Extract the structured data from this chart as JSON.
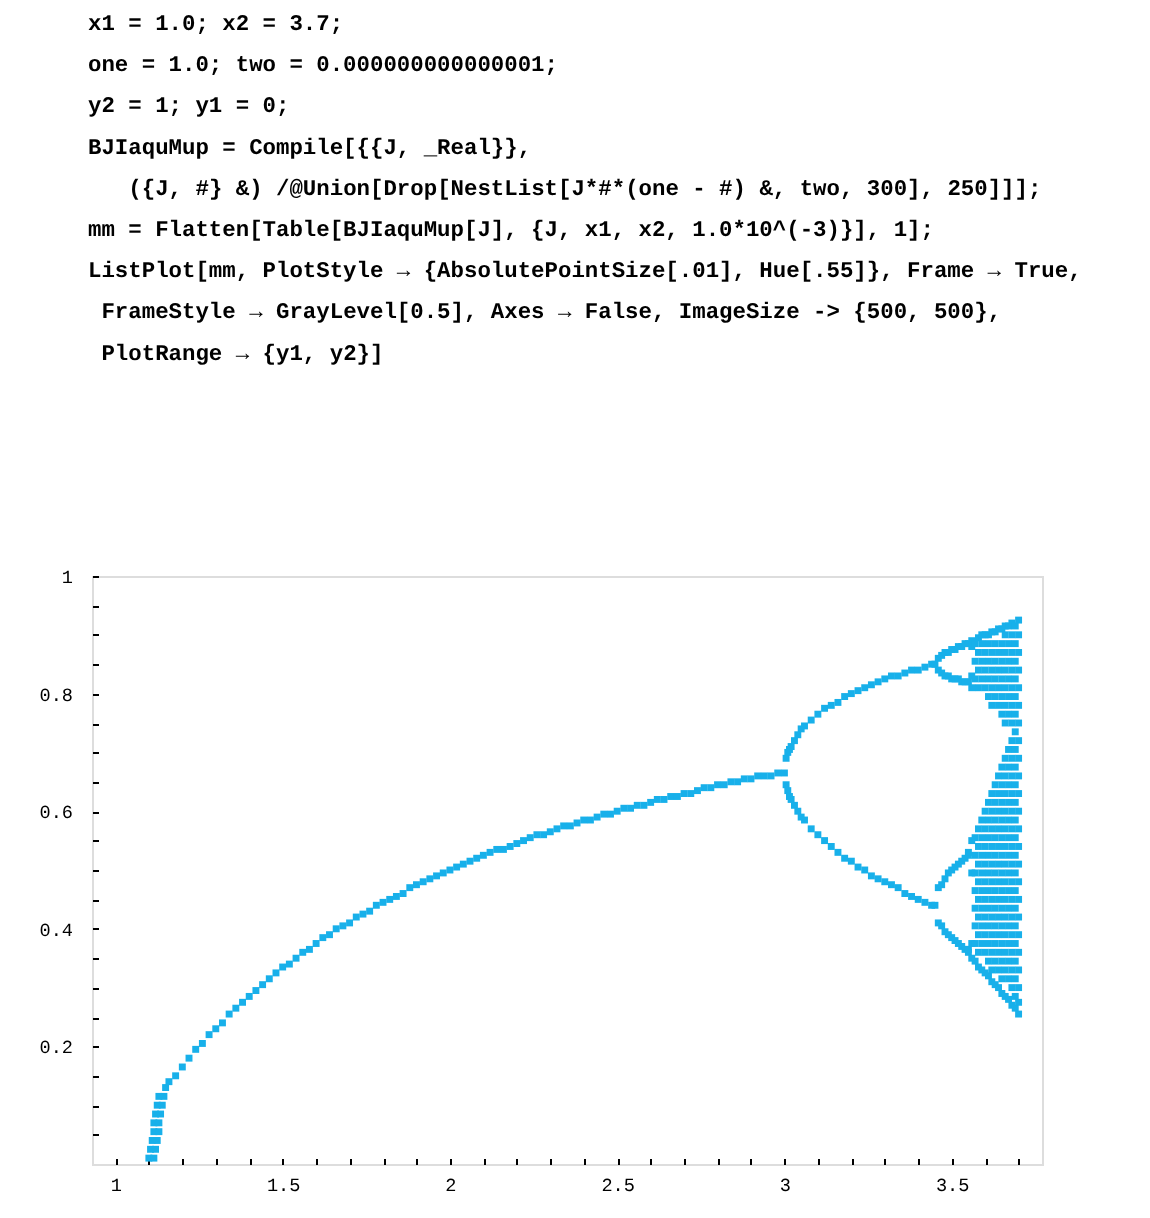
{
  "chart_data": {
    "type": "scatter",
    "marker": "square",
    "annotations": [
      "x1 = 1.0; x2 = 3.7;",
      "one = 1.0; two = 0.000000000000001;",
      "y2 = 1; y1 = 0;",
      "BJIaquMup = Compile[{{J, _Real}},",
      "   ({J, #} &) /@Union[Drop[NestList[J*#*(one - #) &, two, 300], 250]]];",
      "mm = Flatten[Table[BJIaquMup[J], {J, x1, x2, 1.0*10^(-3)}], 1];",
      "ListPlot[mm, PlotStyle → {AbsolutePointSize[.01], Hue[.55]}, Frame → True,",
      " FrameStyle → GrayLevel[0.5], Axes → False, ImageSize -> {500, 500},",
      " PlotRange → {y1, y2}]"
    ],
    "xlim": [
      0.93,
      3.77
    ],
    "ylim": [
      0,
      1
    ],
    "xticks": [
      1,
      {
        "value": 1.1,
        "label": null
      },
      {
        "value": 1.2,
        "label": null
      },
      {
        "value": 1.3,
        "label": null
      },
      {
        "value": 1.4,
        "label": null
      },
      1.5,
      {
        "value": 1.6,
        "label": null
      },
      {
        "value": 1.7,
        "label": null
      },
      {
        "value": 1.8,
        "label": null
      },
      {
        "value": 1.9,
        "label": null
      },
      2,
      {
        "value": 2.1,
        "label": null
      },
      {
        "value": 2.2,
        "label": null
      },
      {
        "value": 2.3,
        "label": null
      },
      {
        "value": 2.4,
        "label": null
      },
      2.5,
      {
        "value": 2.6,
        "label": null
      },
      {
        "value": 2.7,
        "label": null
      },
      {
        "value": 2.8,
        "label": null
      },
      {
        "value": 2.9,
        "label": null
      },
      3,
      {
        "value": 3.1,
        "label": null
      },
      {
        "value": 3.2,
        "label": null
      },
      {
        "value": 3.3,
        "label": null
      },
      {
        "value": 3.4,
        "label": null
      },
      3.5,
      {
        "value": 3.6,
        "label": null
      },
      {
        "value": 3.7,
        "label": null
      }
    ],
    "yticks": [
      {
        "value": 0.05,
        "label": null
      },
      {
        "value": 0.1,
        "label": null
      },
      {
        "value": 0.15,
        "label": null
      },
      0.2,
      {
        "value": 0.25,
        "label": null
      },
      {
        "value": 0.3,
        "label": null
      },
      {
        "value": 0.35,
        "label": null
      },
      0.4,
      {
        "value": 0.45,
        "label": null
      },
      {
        "value": 0.5,
        "label": null
      },
      {
        "value": 0.55,
        "label": null
      },
      0.6,
      {
        "value": 0.65,
        "label": null
      },
      {
        "value": 0.7,
        "label": null
      },
      {
        "value": 0.75,
        "label": null
      },
      0.8,
      {
        "value": 0.85,
        "label": null
      },
      {
        "value": 0.9,
        "label": null
      },
      {
        "value": 0.95,
        "label": null
      },
      1
    ],
    "series": [
      {
        "color": "#18b0ea",
        "x": [
          1.1,
          1.105,
          1.11,
          1.115,
          1.115,
          1.12,
          1.125,
          1.13,
          1.115,
          1.12,
          1.125,
          1.13,
          1.13,
          1.135,
          1.14,
          1.145,
          1.15,
          1.16,
          1.18,
          1.2,
          1.22,
          1.24,
          1.26,
          1.28,
          1.3,
          1.32,
          1.34,
          1.36,
          1.38,
          1.4,
          1.42,
          1.44,
          1.46,
          1.48,
          1.5,
          1.52,
          1.54,
          1.56,
          1.58,
          1.6,
          1.62,
          1.64,
          1.66,
          1.68,
          1.7,
          1.72,
          1.74,
          1.76,
          1.78,
          1.8,
          1.82,
          1.84,
          1.86,
          1.88,
          1.9,
          1.92,
          1.94,
          1.96,
          1.98,
          2,
          2.02,
          2.04,
          2.06,
          2.08,
          2.1,
          2.12,
          2.14,
          2.16,
          2.18,
          2.2,
          2.22,
          2.24,
          2.26,
          2.28,
          2.3,
          2.32,
          2.34,
          2.36,
          2.38,
          2.4,
          2.42,
          2.44,
          2.46,
          2.48,
          2.5,
          2.52,
          2.54,
          2.56,
          2.58,
          2.6,
          2.62,
          2.64,
          2.66,
          2.68,
          2.7,
          2.72,
          2.74,
          2.76,
          2.78,
          2.8,
          2.82,
          2.84,
          2.86,
          2.88,
          2.9,
          2.92,
          2.94,
          2.96,
          2.98,
          3
        ],
        "values": [
          0.01,
          0.025,
          0.04,
          0.055,
          0.07,
          0.085,
          0.1,
          0.115,
          0.01,
          0.025,
          0.04,
          0.055,
          0.07,
          0.085,
          0.1,
          0.115,
          0.13,
          0.14,
          0.15,
          0.165,
          0.18,
          0.195,
          0.205,
          0.22,
          0.23,
          0.24,
          0.255,
          0.265,
          0.275,
          0.285,
          0.295,
          0.305,
          0.315,
          0.325,
          0.335,
          0.34,
          0.35,
          0.36,
          0.365,
          0.375,
          0.385,
          0.39,
          0.4,
          0.405,
          0.41,
          0.42,
          0.425,
          0.43,
          0.44,
          0.445,
          0.45,
          0.455,
          0.46,
          0.47,
          0.475,
          0.48,
          0.485,
          0.49,
          0.495,
          0.5,
          0.505,
          0.51,
          0.515,
          0.52,
          0.525,
          0.53,
          0.535,
          0.535,
          0.54,
          0.545,
          0.55,
          0.555,
          0.56,
          0.56,
          0.565,
          0.57,
          0.575,
          0.575,
          0.58,
          0.585,
          0.585,
          0.59,
          0.595,
          0.595,
          0.6,
          0.605,
          0.605,
          0.61,
          0.61,
          0.615,
          0.62,
          0.62,
          0.625,
          0.625,
          0.63,
          0.63,
          0.635,
          0.64,
          0.64,
          0.645,
          0.645,
          0.65,
          0.65,
          0.655,
          0.655,
          0.66,
          0.66,
          0.66,
          0.665,
          0.665
        ]
      },
      {
        "color": "#18b0ea",
        "x": [
          3.005,
          3.005,
          3.01,
          3.01,
          3.015,
          3.015,
          3.02,
          3.02,
          3.03,
          3.03,
          3.04,
          3.04,
          3.05,
          3.05,
          3.06,
          3.06,
          3.08,
          3.08,
          3.1,
          3.1,
          3.12,
          3.12,
          3.14,
          3.14,
          3.16,
          3.16,
          3.18,
          3.18,
          3.2,
          3.2,
          3.22,
          3.22,
          3.24,
          3.24,
          3.26,
          3.26,
          3.28,
          3.28,
          3.3,
          3.3,
          3.32,
          3.32,
          3.34,
          3.34,
          3.36,
          3.36,
          3.38,
          3.38,
          3.4,
          3.4,
          3.42,
          3.42,
          3.44,
          3.44,
          3.45,
          3.45,
          3.46,
          3.46,
          3.46,
          3.46,
          3.47,
          3.47,
          3.47,
          3.47,
          3.48,
          3.48,
          3.48,
          3.48,
          3.49,
          3.49,
          3.49,
          3.49,
          3.5,
          3.5,
          3.5,
          3.5,
          3.51,
          3.51,
          3.51,
          3.51,
          3.52,
          3.52,
          3.52,
          3.52,
          3.53,
          3.53,
          3.53,
          3.53,
          3.54,
          3.54,
          3.54,
          3.54,
          3.55,
          3.55,
          3.55,
          3.55,
          3.55,
          3.55,
          3.56,
          3.56,
          3.56,
          3.56,
          3.56,
          3.56,
          3.56,
          3.56
        ],
        "values": [
          0.69,
          0.645,
          0.7,
          0.635,
          0.705,
          0.625,
          0.71,
          0.62,
          0.72,
          0.61,
          0.73,
          0.6,
          0.74,
          0.59,
          0.745,
          0.585,
          0.755,
          0.57,
          0.765,
          0.56,
          0.775,
          0.55,
          0.78,
          0.54,
          0.785,
          0.53,
          0.795,
          0.52,
          0.8,
          0.515,
          0.805,
          0.505,
          0.81,
          0.5,
          0.815,
          0.49,
          0.82,
          0.485,
          0.825,
          0.48,
          0.83,
          0.475,
          0.83,
          0.47,
          0.835,
          0.46,
          0.84,
          0.455,
          0.84,
          0.45,
          0.845,
          0.445,
          0.85,
          0.44,
          0.85,
          0.44,
          0.41,
          0.47,
          0.84,
          0.86,
          0.405,
          0.475,
          0.835,
          0.865,
          0.395,
          0.485,
          0.83,
          0.87,
          0.39,
          0.495,
          0.83,
          0.87,
          0.385,
          0.5,
          0.825,
          0.875,
          0.38,
          0.505,
          0.825,
          0.875,
          0.375,
          0.51,
          0.825,
          0.88,
          0.37,
          0.515,
          0.82,
          0.88,
          0.365,
          0.52,
          0.82,
          0.885,
          0.36,
          0.365,
          0.525,
          0.53,
          0.82,
          0.885,
          0.35,
          0.375,
          0.495,
          0.55,
          0.81,
          0.83,
          0.88,
          0.89
        ]
      },
      {
        "color": "#18b0ea",
        "x": [
          3.57,
          3.57,
          3.57,
          3.57,
          3.57,
          3.57,
          3.57,
          3.57,
          3.57,
          3.57,
          3.57,
          3.58,
          3.58,
          3.58,
          3.58,
          3.58,
          3.58,
          3.58,
          3.58,
          3.58,
          3.58,
          3.58,
          3.58,
          3.58,
          3.59,
          3.59,
          3.59,
          3.59,
          3.59,
          3.59,
          3.59,
          3.59,
          3.59,
          3.59,
          3.59,
          3.59,
          3.59,
          3.6,
          3.6,
          3.6,
          3.6,
          3.6,
          3.6,
          3.6,
          3.6,
          3.6,
          3.6,
          3.6,
          3.6,
          3.6,
          3.6,
          3.61,
          3.61,
          3.61,
          3.61,
          3.61,
          3.61,
          3.61,
          3.61,
          3.61,
          3.61,
          3.61,
          3.61,
          3.61,
          3.61,
          3.61,
          3.61,
          3.62,
          3.62,
          3.62,
          3.62,
          3.62,
          3.62,
          3.62,
          3.62,
          3.62,
          3.62,
          3.62,
          3.62,
          3.62,
          3.62,
          3.62,
          3.62,
          3.62,
          3.63,
          3.63,
          3.63,
          3.63,
          3.63,
          3.63,
          3.63,
          3.63,
          3.63,
          3.63,
          3.63,
          3.63,
          3.63,
          3.63,
          3.63,
          3.63,
          3.63,
          3.64,
          3.64,
          3.64,
          3.64,
          3.64,
          3.64,
          3.64,
          3.64,
          3.64,
          3.64,
          3.64,
          3.64,
          3.64,
          3.64,
          3.64,
          3.64,
          3.64,
          3.64
        ],
        "values": [
          0.345,
          0.375,
          0.405,
          0.435,
          0.465,
          0.495,
          0.525,
          0.555,
          0.825,
          0.855,
          0.885,
          0.335,
          0.36,
          0.39,
          0.42,
          0.45,
          0.48,
          0.51,
          0.54,
          0.57,
          0.81,
          0.84,
          0.87,
          0.895,
          0.33,
          0.375,
          0.405,
          0.435,
          0.465,
          0.495,
          0.525,
          0.555,
          0.585,
          0.825,
          0.855,
          0.885,
          0.9,
          0.325,
          0.36,
          0.39,
          0.42,
          0.45,
          0.48,
          0.51,
          0.54,
          0.57,
          0.6,
          0.81,
          0.84,
          0.87,
          0.9,
          0.32,
          0.345,
          0.375,
          0.405,
          0.435,
          0.465,
          0.495,
          0.525,
          0.555,
          0.585,
          0.615,
          0.795,
          0.825,
          0.855,
          0.885,
          0.9,
          0.31,
          0.33,
          0.36,
          0.39,
          0.42,
          0.45,
          0.48,
          0.51,
          0.54,
          0.57,
          0.6,
          0.63,
          0.78,
          0.81,
          0.84,
          0.87,
          0.905,
          0.305,
          0.345,
          0.375,
          0.405,
          0.435,
          0.465,
          0.495,
          0.525,
          0.555,
          0.585,
          0.615,
          0.645,
          0.795,
          0.825,
          0.855,
          0.885,
          0.905,
          0.3,
          0.33,
          0.36,
          0.39,
          0.42,
          0.45,
          0.48,
          0.51,
          0.54,
          0.57,
          0.6,
          0.63,
          0.66,
          0.78,
          0.81,
          0.84,
          0.87,
          0.91
        ]
      },
      {
        "color": "#18b0ea",
        "x": [
          3.65,
          3.65,
          3.65,
          3.65,
          3.65,
          3.65,
          3.65,
          3.65,
          3.65,
          3.65,
          3.65,
          3.65,
          3.65,
          3.65,
          3.65,
          3.65,
          3.65,
          3.65,
          3.65,
          3.65,
          3.66,
          3.66,
          3.66,
          3.66,
          3.66,
          3.66,
          3.66,
          3.66,
          3.66,
          3.66,
          3.66,
          3.66,
          3.66,
          3.66,
          3.66,
          3.66,
          3.66,
          3.66,
          3.66,
          3.66,
          3.66,
          3.67,
          3.67,
          3.67,
          3.67,
          3.67,
          3.67,
          3.67,
          3.67,
          3.67,
          3.67,
          3.67,
          3.67,
          3.67,
          3.67,
          3.67,
          3.67,
          3.67,
          3.67,
          3.67,
          3.67,
          3.67,
          3.68,
          3.68,
          3.68,
          3.68,
          3.68,
          3.68,
          3.68,
          3.68,
          3.68,
          3.68,
          3.68,
          3.68,
          3.68,
          3.68,
          3.68,
          3.68,
          3.68,
          3.68,
          3.68,
          3.68,
          3.68,
          3.68,
          3.68,
          3.69,
          3.69,
          3.69,
          3.69,
          3.69,
          3.69,
          3.69,
          3.69,
          3.69,
          3.69,
          3.69,
          3.69,
          3.69,
          3.69,
          3.69,
          3.69,
          3.69,
          3.69,
          3.69,
          3.69,
          3.69,
          3.69,
          3.69,
          3.7,
          3.7,
          3.7,
          3.7,
          3.7,
          3.7,
          3.7,
          3.7,
          3.7,
          3.7,
          3.7,
          3.7,
          3.7,
          3.7,
          3.7,
          3.7,
          3.7,
          3.7,
          3.7,
          3.7,
          3.7,
          3.7,
          3.7,
          3.7
        ],
        "values": [
          0.29,
          0.315,
          0.345,
          0.375,
          0.405,
          0.435,
          0.465,
          0.495,
          0.525,
          0.555,
          0.585,
          0.615,
          0.645,
          0.675,
          0.765,
          0.795,
          0.825,
          0.855,
          0.885,
          0.91,
          0.285,
          0.33,
          0.36,
          0.39,
          0.42,
          0.45,
          0.48,
          0.51,
          0.54,
          0.57,
          0.6,
          0.63,
          0.66,
          0.69,
          0.75,
          0.78,
          0.81,
          0.84,
          0.87,
          0.9,
          0.915,
          0.28,
          0.315,
          0.345,
          0.375,
          0.405,
          0.435,
          0.465,
          0.495,
          0.525,
          0.555,
          0.585,
          0.615,
          0.645,
          0.675,
          0.705,
          0.765,
          0.795,
          0.825,
          0.855,
          0.885,
          0.915,
          0.27,
          0.3,
          0.33,
          0.36,
          0.39,
          0.42,
          0.45,
          0.48,
          0.51,
          0.54,
          0.57,
          0.6,
          0.63,
          0.66,
          0.69,
          0.72,
          0.75,
          0.78,
          0.81,
          0.84,
          0.87,
          0.9,
          0.92,
          0.265,
          0.285,
          0.315,
          0.345,
          0.375,
          0.405,
          0.435,
          0.465,
          0.495,
          0.525,
          0.555,
          0.585,
          0.615,
          0.645,
          0.675,
          0.705,
          0.735,
          0.765,
          0.795,
          0.825,
          0.855,
          0.885,
          0.915,
          0.255,
          0.275,
          0.3,
          0.33,
          0.36,
          0.39,
          0.42,
          0.45,
          0.48,
          0.51,
          0.54,
          0.57,
          0.6,
          0.63,
          0.66,
          0.69,
          0.72,
          0.75,
          0.78,
          0.81,
          0.84,
          0.87,
          0.9,
          0.925
        ]
      }
    ]
  }
}
